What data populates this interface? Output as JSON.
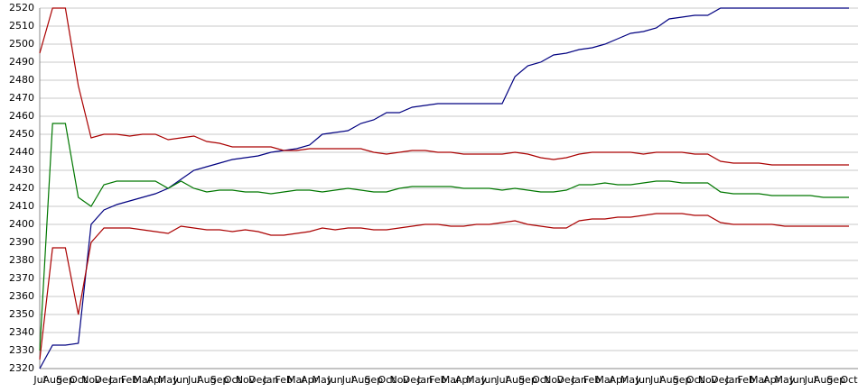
{
  "chart_data": {
    "type": "line",
    "categories": [
      "Jul",
      "Aug",
      "Sep",
      "Oct",
      "Nov",
      "Dec",
      "Jan",
      "Feb",
      "Mar",
      "Apr",
      "May",
      "Jun",
      "Jul",
      "Aug",
      "Sep",
      "Oct",
      "Nov",
      "Dec",
      "Jan",
      "Feb",
      "Mar",
      "Apr",
      "May",
      "Jun",
      "Jul",
      "Aug",
      "Sep",
      "Oct",
      "Nov",
      "Dec",
      "Jan",
      "Feb",
      "Mar",
      "Apr",
      "May",
      "Jun",
      "Jul",
      "Aug",
      "Sep",
      "Oct",
      "Nov",
      "Dec",
      "Jan",
      "Feb",
      "Mar",
      "Apr",
      "May",
      "Jun",
      "Jul",
      "Aug",
      "Sep",
      "Oct",
      "Nov",
      "Dec",
      "Jan",
      "Feb",
      "Mar",
      "Apr",
      "May",
      "Jun",
      "Jul",
      "Aug",
      "Sep",
      "Oct"
    ],
    "series": [
      {
        "color": "#000080",
        "values": [
          2320,
          2333,
          2333,
          2334,
          2400,
          2408,
          2411,
          2413,
          2415,
          2417,
          2420,
          2425,
          2430,
          2432,
          2434,
          2436,
          2437,
          2438,
          2440,
          2441,
          2442,
          2444,
          2450,
          2451,
          2452,
          2456,
          2458,
          2462,
          2462,
          2465,
          2466,
          2467,
          2467,
          2467,
          2467,
          2467,
          2467,
          2482,
          2488,
          2490,
          2494,
          2495,
          2497,
          2498,
          2500,
          2503,
          2506,
          2507,
          2509,
          2514,
          2515,
          2516,
          2516,
          2520,
          2520,
          2520,
          2520,
          2520,
          2520,
          2520,
          2520,
          2520,
          2520,
          2520
        ]
      },
      {
        "color": "#aa0000",
        "values": [
          2495,
          2520,
          2520,
          2477,
          2448,
          2450,
          2450,
          2449,
          2450,
          2450,
          2447,
          2448,
          2449,
          2446,
          2445,
          2443,
          2443,
          2443,
          2443,
          2441,
          2441,
          2442,
          2442,
          2442,
          2442,
          2442,
          2440,
          2439,
          2440,
          2441,
          2441,
          2440,
          2440,
          2439,
          2439,
          2439,
          2439,
          2440,
          2439,
          2437,
          2436,
          2437,
          2439,
          2440,
          2440,
          2440,
          2440,
          2439,
          2440,
          2440,
          2440,
          2439,
          2439,
          2435,
          2434,
          2434,
          2434,
          2433,
          2433,
          2433,
          2433,
          2433,
          2433,
          2433
        ]
      },
      {
        "color": "#007700",
        "values": [
          2330,
          2456,
          2456,
          2415,
          2410,
          2422,
          2424,
          2424,
          2424,
          2424,
          2420,
          2424,
          2420,
          2418,
          2419,
          2419,
          2418,
          2418,
          2417,
          2418,
          2419,
          2419,
          2418,
          2419,
          2420,
          2419,
          2418,
          2418,
          2420,
          2421,
          2421,
          2421,
          2421,
          2420,
          2420,
          2420,
          2419,
          2420,
          2419,
          2418,
          2418,
          2419,
          2422,
          2422,
          2423,
          2422,
          2422,
          2423,
          2424,
          2424,
          2423,
          2423,
          2423,
          2418,
          2417,
          2417,
          2417,
          2416,
          2416,
          2416,
          2416,
          2415,
          2415,
          2415
        ]
      },
      {
        "color": "#aa0000",
        "values": [
          2325,
          2387,
          2387,
          2350,
          2390,
          2398,
          2398,
          2398,
          2397,
          2396,
          2395,
          2399,
          2398,
          2397,
          2397,
          2396,
          2397,
          2396,
          2394,
          2394,
          2395,
          2396,
          2398,
          2397,
          2398,
          2398,
          2397,
          2397,
          2398,
          2399,
          2400,
          2400,
          2399,
          2399,
          2400,
          2400,
          2401,
          2402,
          2400,
          2399,
          2398,
          2398,
          2402,
          2403,
          2403,
          2404,
          2404,
          2405,
          2406,
          2406,
          2406,
          2405,
          2405,
          2401,
          2400,
          2400,
          2400,
          2400,
          2399,
          2399,
          2399,
          2399,
          2399,
          2399
        ]
      }
    ],
    "ylim": [
      2320,
      2520
    ],
    "yticks": [
      2320,
      2330,
      2340,
      2350,
      2360,
      2370,
      2380,
      2390,
      2400,
      2410,
      2420,
      2430,
      2440,
      2450,
      2460,
      2470,
      2480,
      2490,
      2500,
      2510,
      2520
    ],
    "grid": true
  }
}
